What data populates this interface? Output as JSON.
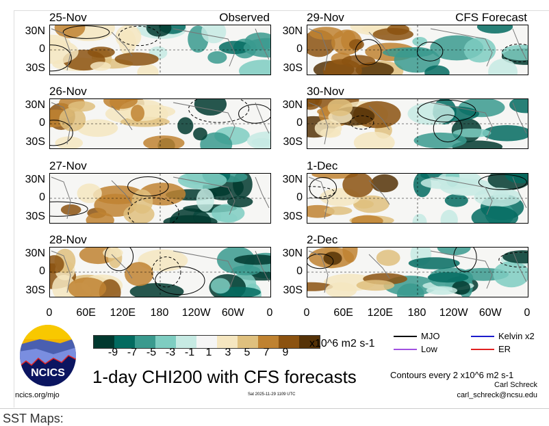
{
  "panels": [
    {
      "date": "25-Nov",
      "tag": "Observed"
    },
    {
      "date": "29-Nov",
      "tag": "CFS Forecast"
    },
    {
      "date": "26-Nov",
      "tag": ""
    },
    {
      "date": "30-Nov",
      "tag": ""
    },
    {
      "date": "27-Nov",
      "tag": ""
    },
    {
      "date": "1-Dec",
      "tag": ""
    },
    {
      "date": "28-Nov",
      "tag": ""
    },
    {
      "date": "2-Dec",
      "tag": ""
    }
  ],
  "lat_labels": [
    "30N",
    "0",
    "30S"
  ],
  "lon_labels": [
    "0",
    "60E",
    "120E",
    "180",
    "120W",
    "60W",
    "0"
  ],
  "colorbar": {
    "colors": [
      "#01392f",
      "#036b60",
      "#3a9a8e",
      "#7ecdc1",
      "#c6eae3",
      "#f5f5f5",
      "#f5e6c0",
      "#dfc07e",
      "#bf8231",
      "#8b5210",
      "#553207"
    ],
    "labels": [
      "-9",
      "-7",
      "-5",
      "-3",
      "-1",
      "1",
      "3",
      "5",
      "7",
      "9"
    ],
    "units": "x10^6 m2 s-1"
  },
  "title": "1-day CHI200 with CFS forecasts",
  "legend": [
    {
      "label": "MJO",
      "color": "#000000"
    },
    {
      "label": "Kelvin x2",
      "color": "#1a1acc"
    },
    {
      "label": "Low",
      "color": "#a050e0"
    },
    {
      "label": "ER",
      "color": "#e02020"
    }
  ],
  "contours_note": "Contours every 2 x10^6 m2 s-1",
  "author": "Carl Schreck",
  "email": "carl_schreck@ncsu.edu",
  "site": "ncics.org/mjo",
  "timestamp": "Sat 2025-11-29 1109 UTC",
  "logo_text": "NCICS",
  "section_heading": "SST Maps:"
}
